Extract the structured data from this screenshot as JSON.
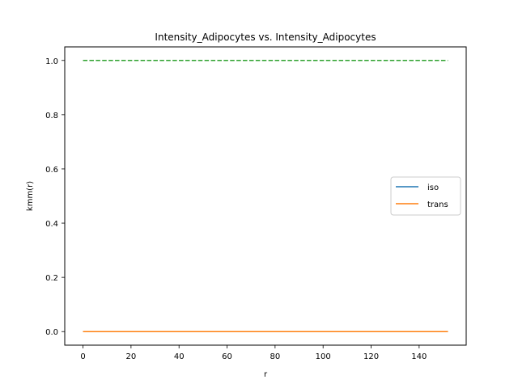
{
  "chart_data": {
    "type": "line",
    "title": "Intensity_Adipocytes vs. Intensity_Adipocytes",
    "xlabel": "r",
    "ylabel": "kmm(r)",
    "xlim": [
      -7.6,
      159.6
    ],
    "ylim": [
      -0.05,
      1.05
    ],
    "x_ticks": [
      0,
      20,
      40,
      60,
      80,
      100,
      120,
      140
    ],
    "y_ticks": [
      0.0,
      0.2,
      0.4,
      0.6,
      0.8,
      1.0
    ],
    "x_tick_labels": [
      "0",
      "20",
      "40",
      "60",
      "80",
      "100",
      "120",
      "140"
    ],
    "y_tick_labels": [
      "0.0",
      "0.2",
      "0.4",
      "0.6",
      "0.8",
      "1.0"
    ],
    "grid": false,
    "legend_position": "center-right",
    "series": [
      {
        "name": "iso",
        "color": "#1f77b4",
        "style": "solid",
        "x": [
          0,
          152
        ],
        "y": [
          0.0,
          0.0
        ]
      },
      {
        "name": "trans",
        "color": "#ff7f0e",
        "style": "solid",
        "x": [
          0,
          152
        ],
        "y": [
          0.0,
          0.0
        ]
      },
      {
        "color": "#2ca02c",
        "style": "dashed",
        "x": [
          0,
          152
        ],
        "y": [
          1.0,
          1.0
        ]
      }
    ]
  }
}
